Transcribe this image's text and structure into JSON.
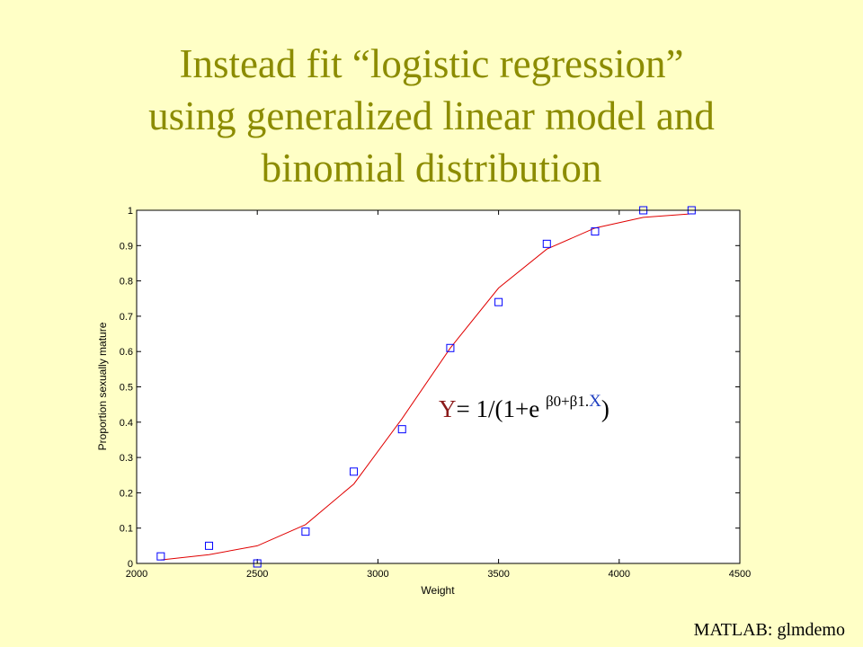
{
  "slide": {
    "title_lines": [
      "Instead fit “logistic regression”",
      "using generalized linear model and",
      "binomial distribution"
    ],
    "formula": {
      "lhs": "Y",
      "mid": "= 1/(1+e ",
      "exp": "β0+β1",
      "dot": ".",
      "var": "X",
      "close": ")"
    },
    "source": "MATLAB: glmdemo"
  },
  "chart_data": {
    "type": "scatter",
    "title": "",
    "xlabel": "Weight",
    "ylabel": "Proportion sexually mature",
    "xlim": [
      2000,
      4500
    ],
    "ylim": [
      0,
      1
    ],
    "xticks": [
      2000,
      2500,
      3000,
      3500,
      4000,
      4500
    ],
    "yticks": [
      0,
      0.1,
      0.2,
      0.3,
      0.4,
      0.5,
      0.6,
      0.7,
      0.8,
      0.9,
      1
    ],
    "ytick_labels": [
      "0",
      "0.1",
      "0.2",
      "0.3",
      "0.4",
      "0.5",
      "0.6",
      "0.7",
      "0.8",
      "0.9",
      "1"
    ],
    "grid": false,
    "series": [
      {
        "kind": "markers",
        "marker": "square",
        "color": "#0000FF",
        "x": [
          2100,
          2300,
          2500,
          2700,
          2900,
          3100,
          3300,
          3500,
          3700,
          3900,
          4100,
          4300
        ],
        "y": [
          0.02,
          0.05,
          0.0,
          0.09,
          0.26,
          0.38,
          0.61,
          0.74,
          0.905,
          0.94,
          1.0,
          1.0
        ]
      },
      {
        "kind": "line",
        "color": "#E00000",
        "x": [
          2100,
          2300,
          2500,
          2700,
          2900,
          3100,
          3300,
          3500,
          3700,
          3900,
          4100,
          4300
        ],
        "y": [
          0.01,
          0.025,
          0.05,
          0.11,
          0.225,
          0.41,
          0.61,
          0.78,
          0.89,
          0.95,
          0.98,
          0.99
        ]
      }
    ]
  }
}
